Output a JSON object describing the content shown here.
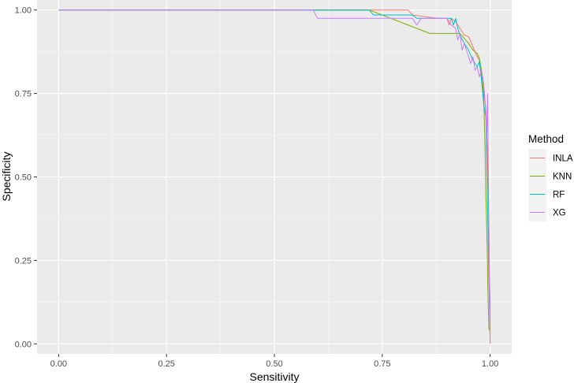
{
  "chart_data": {
    "type": "line",
    "title": "",
    "xlabel": "Sensitivity",
    "ylabel": "Specificity",
    "xlim": [
      -0.05,
      1.05
    ],
    "ylim": [
      -0.03,
      1.03
    ],
    "x_ticks": [
      0.0,
      0.25,
      0.5,
      0.75,
      1.0
    ],
    "x_tick_labels": [
      "0.00",
      "0.25",
      "0.50",
      "0.75",
      "1.00"
    ],
    "y_ticks": [
      0.0,
      0.25,
      0.5,
      0.75,
      1.0
    ],
    "y_tick_labels": [
      "0.00",
      "0.25",
      "0.50",
      "0.75",
      "1.00"
    ],
    "grid": true,
    "legend": {
      "title": "Method",
      "position": "right"
    },
    "series": [
      {
        "name": "INLA",
        "color": "#F8766D",
        "points": [
          [
            0.0,
            1.0
          ],
          [
            0.81,
            1.0
          ],
          [
            0.82,
            0.985
          ],
          [
            0.88,
            0.975
          ],
          [
            0.9,
            0.975
          ],
          [
            0.905,
            0.955
          ],
          [
            0.91,
            0.975
          ],
          [
            0.92,
            0.965
          ],
          [
            0.93,
            0.945
          ],
          [
            0.94,
            0.925
          ],
          [
            0.95,
            0.92
          ],
          [
            0.96,
            0.89
          ],
          [
            0.965,
            0.875
          ],
          [
            0.97,
            0.86
          ],
          [
            0.975,
            0.85
          ],
          [
            0.98,
            0.8
          ],
          [
            0.985,
            0.76
          ],
          [
            0.99,
            0.7
          ],
          [
            0.993,
            0.6
          ],
          [
            0.995,
            0.5
          ],
          [
            0.997,
            0.38
          ],
          [
            0.998,
            0.25
          ],
          [
            1.0,
            0.12
          ],
          [
            1.0,
            0.0
          ]
        ]
      },
      {
        "name": "KNN",
        "color": "#7CAE00",
        "points": [
          [
            0.0,
            1.0
          ],
          [
            0.72,
            1.0
          ],
          [
            0.73,
            0.995
          ],
          [
            0.82,
            0.95
          ],
          [
            0.86,
            0.93
          ],
          [
            0.91,
            0.93
          ],
          [
            0.93,
            0.93
          ],
          [
            0.94,
            0.915
          ],
          [
            0.95,
            0.9
          ],
          [
            0.96,
            0.88
          ],
          [
            0.97,
            0.87
          ],
          [
            0.975,
            0.855
          ],
          [
            0.98,
            0.82
          ],
          [
            0.985,
            0.74
          ],
          [
            0.988,
            0.6
          ],
          [
            0.99,
            0.45
          ],
          [
            0.993,
            0.3
          ],
          [
            0.995,
            0.15
          ],
          [
            0.997,
            0.05
          ],
          [
            0.998,
            0.04
          ]
        ]
      },
      {
        "name": "RF",
        "color": "#00BFC4",
        "points": [
          [
            0.0,
            1.0
          ],
          [
            0.72,
            1.0
          ],
          [
            0.73,
            0.985
          ],
          [
            0.82,
            0.985
          ],
          [
            0.83,
            0.975
          ],
          [
            0.91,
            0.975
          ],
          [
            0.915,
            0.955
          ],
          [
            0.92,
            0.975
          ],
          [
            0.925,
            0.945
          ],
          [
            0.93,
            0.925
          ],
          [
            0.94,
            0.9
          ],
          [
            0.95,
            0.88
          ],
          [
            0.96,
            0.85
          ],
          [
            0.97,
            0.83
          ],
          [
            0.975,
            0.845
          ],
          [
            0.98,
            0.79
          ],
          [
            0.985,
            0.72
          ],
          [
            0.99,
            0.68
          ],
          [
            0.993,
            0.5
          ],
          [
            0.995,
            0.35
          ],
          [
            0.997,
            0.2
          ],
          [
            0.999,
            0.08
          ],
          [
            1.0,
            0.06
          ]
        ]
      },
      {
        "name": "XG",
        "color": "#C77CFF",
        "points": [
          [
            0.0,
            1.0
          ],
          [
            0.59,
            1.0
          ],
          [
            0.6,
            0.975
          ],
          [
            0.61,
            0.975
          ],
          [
            0.82,
            0.975
          ],
          [
            0.83,
            0.955
          ],
          [
            0.84,
            0.975
          ],
          [
            0.9,
            0.975
          ],
          [
            0.91,
            0.955
          ],
          [
            0.92,
            0.945
          ],
          [
            0.925,
            0.91
          ],
          [
            0.93,
            0.93
          ],
          [
            0.935,
            0.88
          ],
          [
            0.94,
            0.9
          ],
          [
            0.95,
            0.86
          ],
          [
            0.955,
            0.84
          ],
          [
            0.96,
            0.86
          ],
          [
            0.965,
            0.82
          ],
          [
            0.97,
            0.83
          ],
          [
            0.975,
            0.8
          ],
          [
            0.98,
            0.82
          ],
          [
            0.985,
            0.78
          ],
          [
            0.99,
            0.7
          ],
          [
            0.992,
            0.6
          ],
          [
            0.994,
            0.75
          ],
          [
            0.996,
            0.5
          ],
          [
            0.997,
            0.35
          ],
          [
            0.998,
            0.15
          ],
          [
            1.0,
            0.0
          ]
        ]
      }
    ]
  }
}
